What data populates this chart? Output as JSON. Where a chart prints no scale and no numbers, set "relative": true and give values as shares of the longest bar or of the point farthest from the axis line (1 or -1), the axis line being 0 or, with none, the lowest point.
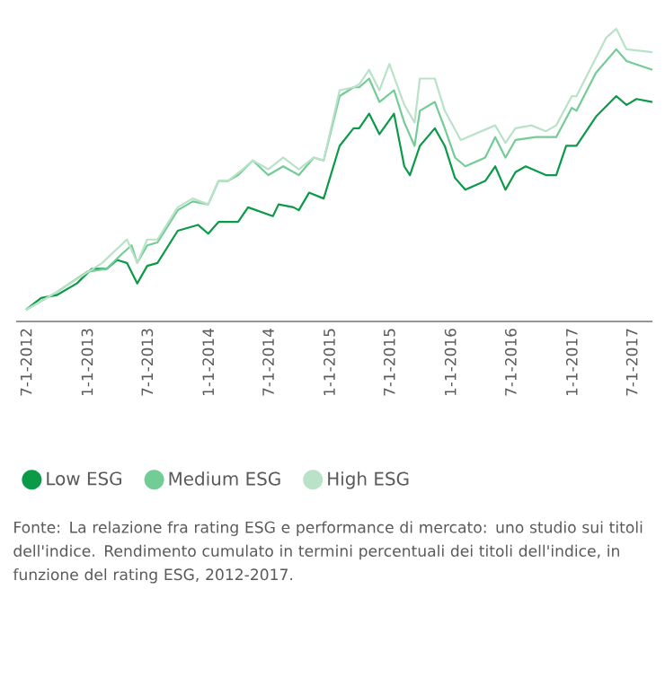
{
  "chart_data": {
    "type": "line",
    "relative": true,
    "grid": false,
    "legend": "bottom",
    "marker": "none",
    "line_style": "solid",
    "tick_labels": "x",
    "xlim": [
      "2012-06-01",
      "2017-09-01"
    ],
    "xticks": [
      {
        "value": "2012-07-01",
        "label": "7-1-2012"
      },
      {
        "value": "2013-01-01",
        "label": "1-1-2013"
      },
      {
        "value": "2013-07-01",
        "label": "7-1-2013"
      },
      {
        "value": "2014-01-01",
        "label": "1-1-2014"
      },
      {
        "value": "2014-07-01",
        "label": "7-1-2014"
      },
      {
        "value": "2015-01-01",
        "label": "1-1-2015"
      },
      {
        "value": "2015-07-01",
        "label": "7-1-2015"
      },
      {
        "value": "2016-01-01",
        "label": "1-1-2016"
      },
      {
        "value": "2016-07-01",
        "label": "7-1-2016"
      },
      {
        "value": "2017-01-01",
        "label": "1-1-2017"
      },
      {
        "value": "2017-07-01",
        "label": "7-1-2017"
      }
    ],
    "series": [
      {
        "name": "High ESG",
        "color": "#b9e2c8",
        "x": [
          "2012-07-01",
          "2012-10-01",
          "2013-02-15",
          "2013-05-01",
          "2013-06-01",
          "2013-07-01",
          "2013-08-01",
          "2013-10-01",
          "2013-11-15",
          "2014-01-01",
          "2014-02-01",
          "2014-03-01",
          "2014-04-15",
          "2014-05-15",
          "2014-07-01",
          "2014-08-15",
          "2014-10-01",
          "2014-11-15",
          "2014-12-15",
          "2015-02-01",
          "2015-03-15",
          "2015-04-01",
          "2015-05-01",
          "2015-06-01",
          "2015-07-01",
          "2015-08-15",
          "2015-09-15",
          "2015-10-01",
          "2015-11-15",
          "2015-12-15",
          "2016-02-01",
          "2016-05-15",
          "2016-06-15",
          "2016-07-15",
          "2016-09-01",
          "2016-10-15",
          "2016-11-15",
          "2017-01-01",
          "2017-01-15",
          "2017-04-15",
          "2017-05-15",
          "2017-06-15",
          "2017-09-01"
        ],
        "values": [
          0.04,
          0.1,
          0.2,
          0.28,
          0.2,
          0.28,
          0.28,
          0.39,
          0.42,
          0.4,
          0.48,
          0.48,
          0.52,
          0.55,
          0.52,
          0.56,
          0.52,
          0.56,
          0.55,
          0.79,
          0.8,
          0.81,
          0.86,
          0.79,
          0.88,
          0.74,
          0.68,
          0.83,
          0.83,
          0.72,
          0.62,
          0.67,
          0.61,
          0.66,
          0.67,
          0.65,
          0.67,
          0.77,
          0.77,
          0.97,
          1.0,
          0.93,
          0.92
        ]
      },
      {
        "name": "Medium ESG",
        "color": "#72cc96",
        "x": [
          "2012-07-01",
          "2012-10-01",
          "2013-01-01",
          "2013-03-01",
          "2013-04-15",
          "2013-05-15",
          "2013-06-01",
          "2013-07-01",
          "2013-08-01",
          "2013-10-01",
          "2013-11-15",
          "2014-01-01",
          "2014-02-01",
          "2014-03-01",
          "2014-04-01",
          "2014-05-15",
          "2014-07-01",
          "2014-08-15",
          "2014-10-01",
          "2014-11-15",
          "2014-12-15",
          "2015-02-01",
          "2015-03-15",
          "2015-04-01",
          "2015-05-01",
          "2015-06-01",
          "2015-07-15",
          "2015-08-15",
          "2015-09-15",
          "2015-10-01",
          "2015-11-15",
          "2015-12-15",
          "2016-01-15",
          "2016-02-15",
          "2016-04-15",
          "2016-05-15",
          "2016-06-15",
          "2016-07-15",
          "2016-09-15",
          "2016-11-15",
          "2017-01-01",
          "2017-01-15",
          "2017-03-15",
          "2017-05-15",
          "2017-06-15",
          "2017-09-01"
        ],
        "values": [
          0.04,
          0.1,
          0.17,
          0.18,
          0.23,
          0.26,
          0.2,
          0.26,
          0.27,
          0.38,
          0.41,
          0.4,
          0.48,
          0.48,
          0.5,
          0.55,
          0.5,
          0.53,
          0.5,
          0.56,
          0.55,
          0.77,
          0.8,
          0.8,
          0.83,
          0.75,
          0.79,
          0.68,
          0.6,
          0.72,
          0.75,
          0.66,
          0.56,
          0.53,
          0.56,
          0.63,
          0.56,
          0.62,
          0.63,
          0.63,
          0.73,
          0.72,
          0.85,
          0.93,
          0.89,
          0.86
        ]
      },
      {
        "name": "Low ESG",
        "color": "#0a9a48",
        "x": [
          "2012-07-01",
          "2012-08-15",
          "2012-10-01",
          "2012-12-01",
          "2013-01-15",
          "2013-03-01",
          "2013-04-01",
          "2013-05-01",
          "2013-06-01",
          "2013-07-01",
          "2013-08-01",
          "2013-10-01",
          "2013-12-01",
          "2014-01-01",
          "2014-02-01",
          "2014-03-01",
          "2014-04-01",
          "2014-05-01",
          "2014-07-15",
          "2014-08-01",
          "2014-09-15",
          "2014-10-01",
          "2014-11-01",
          "2014-12-15",
          "2015-02-01",
          "2015-03-15",
          "2015-04-01",
          "2015-05-01",
          "2015-06-01",
          "2015-07-15",
          "2015-08-15",
          "2015-09-01",
          "2015-10-01",
          "2015-11-15",
          "2015-12-15",
          "2016-01-15",
          "2016-02-15",
          "2016-04-15",
          "2016-05-15",
          "2016-06-15",
          "2016-07-15",
          "2016-08-15",
          "2016-10-15",
          "2016-11-15",
          "2016-12-15",
          "2017-01-15",
          "2017-03-15",
          "2017-05-15",
          "2017-06-15",
          "2017-07-15",
          "2017-09-01"
        ],
        "values": [
          0.04,
          0.08,
          0.09,
          0.13,
          0.18,
          0.18,
          0.21,
          0.2,
          0.13,
          0.19,
          0.2,
          0.31,
          0.33,
          0.3,
          0.34,
          0.34,
          0.34,
          0.39,
          0.36,
          0.4,
          0.39,
          0.38,
          0.44,
          0.42,
          0.6,
          0.66,
          0.66,
          0.71,
          0.64,
          0.71,
          0.53,
          0.5,
          0.6,
          0.66,
          0.6,
          0.49,
          0.45,
          0.48,
          0.53,
          0.45,
          0.51,
          0.53,
          0.5,
          0.5,
          0.6,
          0.6,
          0.7,
          0.77,
          0.74,
          0.76,
          0.75
        ]
      }
    ],
    "annotations": [
      "Fonte: La relazione fra rating ESG e performance di mercato: uno studio sui titoli dell'indice. Rendimento cumulato in termini percentuali dei titoli dell'indice, in funzione del rating ESG, 2012-2017."
    ]
  }
}
